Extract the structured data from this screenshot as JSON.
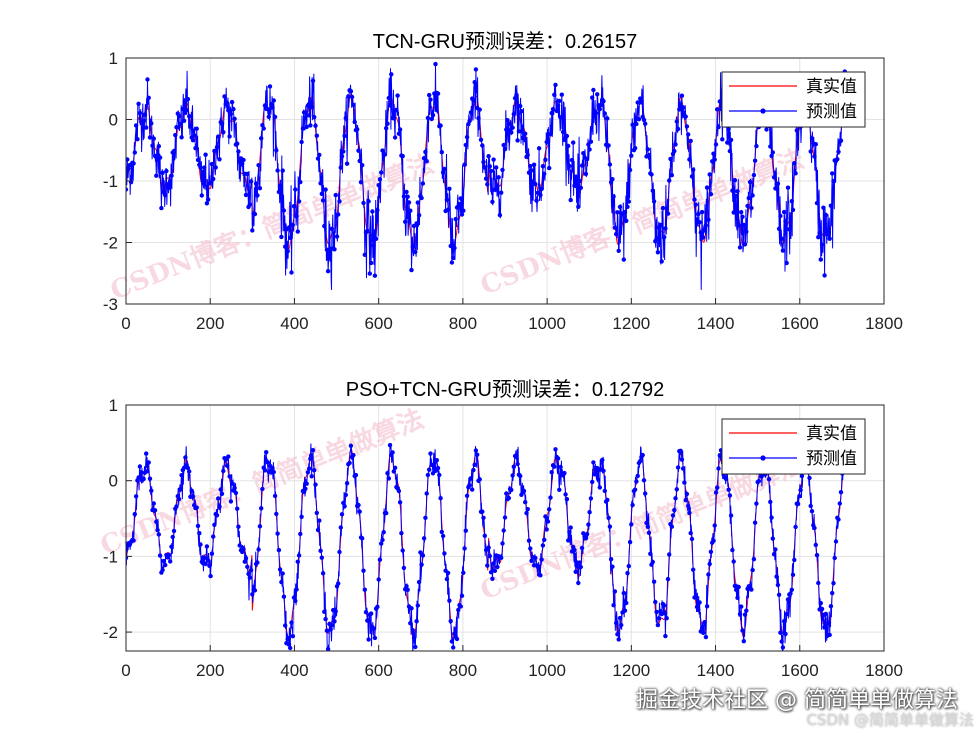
{
  "chart_data": [
    {
      "type": "line",
      "title": "TCN-GRU预测误差：0.26157",
      "xlabel": "",
      "ylabel": "",
      "xlim": [
        0,
        1800
      ],
      "ylim": [
        -3,
        1
      ],
      "xticks": [
        0,
        200,
        400,
        600,
        800,
        1000,
        1200,
        1400,
        1600,
        1800
      ],
      "yticks": [
        1,
        0,
        -1,
        -2,
        -3
      ],
      "grid": true,
      "legend_placement": "top-right",
      "n_points": 1713,
      "series": [
        {
          "name": "真实值",
          "color": "#ff0000",
          "style": "line",
          "description_points": [
            [
              0,
              -0.7
            ],
            [
              30,
              0.3
            ],
            [
              60,
              -1.0
            ],
            [
              110,
              0.4
            ],
            [
              150,
              -0.8
            ],
            [
              210,
              0.4
            ],
            [
              260,
              -1.0
            ],
            [
              300,
              0.0
            ],
            [
              350,
              -1.8
            ],
            [
              400,
              0.1
            ],
            [
              440,
              -2.0
            ],
            [
              500,
              0.2
            ],
            [
              540,
              -2.0
            ],
            [
              600,
              0.2
            ],
            [
              640,
              -2.0
            ],
            [
              700,
              0.3
            ],
            [
              740,
              -2.2
            ],
            [
              800,
              0.1
            ],
            [
              840,
              -2.0
            ],
            [
              870,
              0.3
            ],
            [
              920,
              -1.0
            ],
            [
              970,
              0.4
            ],
            [
              1020,
              -1.2
            ],
            [
              1070,
              0.4
            ],
            [
              1110,
              -1.2
            ],
            [
              1160,
              0.1
            ],
            [
              1200,
              -1.6
            ],
            [
              1260,
              0.1
            ],
            [
              1300,
              -2.0
            ],
            [
              1360,
              0.0
            ],
            [
              1400,
              -2.0
            ],
            [
              1450,
              0.0
            ],
            [
              1500,
              -2.0
            ],
            [
              1550,
              0.0
            ],
            [
              1590,
              -2.0
            ],
            [
              1640,
              0.0
            ],
            [
              1690,
              -2.0
            ],
            [
              1713,
              -1.5
            ]
          ]
        },
        {
          "name": "预测值",
          "color": "#0000ff",
          "style": "line-dot"
        }
      ]
    },
    {
      "type": "line",
      "title": "PSO+TCN-GRU预测误差：0.12792",
      "xlabel": "",
      "ylabel": "",
      "xlim": [
        0,
        1800
      ],
      "ylim": [
        -2.25,
        1
      ],
      "xticks": [
        0,
        200,
        400,
        600,
        800,
        1000,
        1200,
        1400,
        1600,
        1800
      ],
      "yticks": [
        1,
        0,
        -1,
        -2
      ],
      "grid": true,
      "legend_placement": "top-right",
      "n_points": 1713,
      "series": [
        {
          "name": "真实值",
          "color": "#ff0000",
          "style": "line"
        },
        {
          "name": "预测值",
          "color": "#0000ff",
          "style": "line-dot"
        }
      ]
    }
  ],
  "watermarks": [
    "CSDN博客：简简单单做算法",
    "CSDN博客：简简单单做算法",
    "CSDN博客：简简单单做算法",
    "CSDN博客：简简单单做算法"
  ],
  "footer": {
    "main": "掘金技术社区 @ 简简单单做算法",
    "sub": "CSDN @简简单单做算法"
  }
}
